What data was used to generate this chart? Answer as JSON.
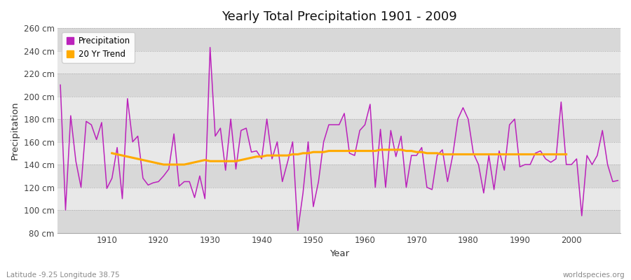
{
  "title": "Yearly Total Precipitation 1901 - 2009",
  "xlabel": "Year",
  "ylabel": "Precipitation",
  "subtitle_lat": "Latitude -9.25 Longitude 38.75",
  "source": "worldspecies.org",
  "bg_color": "#ffffff",
  "plot_bg_color": "#e0e0e0",
  "band_colors": [
    "#d8d8d8",
    "#e8e8e8"
  ],
  "precip_color": "#bb22bb",
  "trend_color": "#ffaa00",
  "ylim": [
    80,
    260
  ],
  "yticks": [
    80,
    100,
    120,
    140,
    160,
    180,
    200,
    220,
    240,
    260
  ],
  "xticks": [
    1910,
    1920,
    1930,
    1940,
    1950,
    1960,
    1970,
    1980,
    1990,
    2000
  ],
  "years": [
    1901,
    1902,
    1903,
    1904,
    1905,
    1906,
    1907,
    1908,
    1909,
    1910,
    1911,
    1912,
    1913,
    1914,
    1915,
    1916,
    1917,
    1918,
    1919,
    1920,
    1921,
    1922,
    1923,
    1924,
    1925,
    1926,
    1927,
    1928,
    1929,
    1930,
    1931,
    1932,
    1933,
    1934,
    1935,
    1936,
    1937,
    1938,
    1939,
    1940,
    1941,
    1942,
    1943,
    1944,
    1945,
    1946,
    1947,
    1948,
    1949,
    1950,
    1951,
    1952,
    1953,
    1954,
    1955,
    1956,
    1957,
    1958,
    1959,
    1960,
    1961,
    1962,
    1963,
    1964,
    1965,
    1966,
    1967,
    1968,
    1969,
    1970,
    1971,
    1972,
    1973,
    1974,
    1975,
    1976,
    1977,
    1978,
    1979,
    1980,
    1981,
    1982,
    1983,
    1984,
    1985,
    1986,
    1987,
    1988,
    1989,
    1990,
    1991,
    1992,
    1993,
    1994,
    1995,
    1996,
    1997,
    1998,
    1999,
    2000,
    2001,
    2002,
    2003,
    2004,
    2005,
    2006,
    2007,
    2008,
    2009
  ],
  "precip": [
    210,
    100,
    183,
    143,
    120,
    178,
    175,
    162,
    177,
    119,
    128,
    155,
    110,
    198,
    160,
    165,
    128,
    122,
    124,
    125,
    130,
    136,
    167,
    121,
    125,
    125,
    111,
    130,
    110,
    243,
    165,
    172,
    135,
    180,
    136,
    170,
    172,
    151,
    152,
    145,
    180,
    145,
    160,
    125,
    142,
    160,
    82,
    115,
    160,
    103,
    125,
    160,
    175,
    175,
    175,
    185,
    150,
    148,
    170,
    175,
    193,
    120,
    171,
    120,
    170,
    147,
    165,
    120,
    148,
    148,
    155,
    120,
    118,
    148,
    153,
    125,
    148,
    180,
    190,
    180,
    150,
    140,
    115,
    148,
    118,
    152,
    135,
    175,
    180,
    138,
    140,
    140,
    150,
    152,
    145,
    142,
    145,
    195,
    140,
    140,
    145,
    95,
    148,
    140,
    148,
    170,
    140,
    125,
    126
  ],
  "trend_start_year": 1911,
  "trend_end_year": 1999,
  "trend": [
    150,
    149,
    148,
    147,
    146,
    145,
    144,
    143,
    142,
    141,
    140,
    140,
    140,
    140,
    140,
    141,
    142,
    143,
    144,
    143,
    143,
    143,
    143,
    143,
    143,
    144,
    145,
    146,
    147,
    147,
    148,
    148,
    148,
    148,
    148,
    149,
    149,
    150,
    150,
    151,
    151,
    151,
    152,
    152,
    152,
    152,
    152,
    152,
    152,
    152,
    152,
    152,
    153,
    153,
    153,
    153,
    153,
    152,
    152,
    151,
    151,
    150,
    150,
    150,
    149,
    149,
    149,
    149,
    149,
    149,
    149,
    149,
    149,
    149,
    149,
    149,
    149,
    149,
    149,
    149,
    149,
    149,
    149,
    149,
    149,
    149,
    149,
    149,
    149
  ]
}
